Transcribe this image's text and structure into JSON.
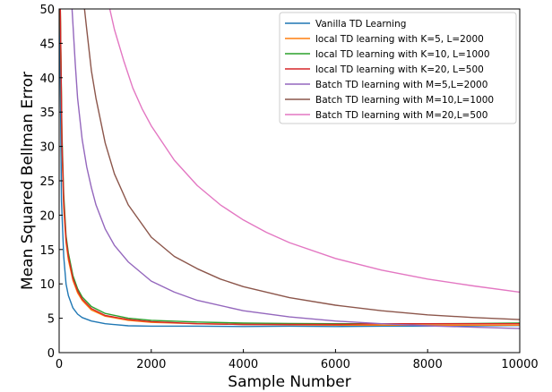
{
  "chart_data": {
    "type": "line",
    "title": "",
    "xlabel": "Sample Number",
    "ylabel": "Mean Squared Bellman Error",
    "xlim": [
      0,
      10000
    ],
    "ylim": [
      0,
      50
    ],
    "xticks": [
      0,
      2000,
      4000,
      6000,
      8000,
      10000
    ],
    "yticks": [
      0,
      5,
      10,
      15,
      20,
      25,
      30,
      35,
      40,
      45,
      50
    ],
    "grid": false,
    "legend_position": "top-right",
    "series": [
      {
        "name": "Vanilla TD Learning",
        "color": "#1f77b4",
        "x": [
          10,
          50,
          100,
          150,
          200,
          300,
          400,
          500,
          700,
          1000,
          1500,
          2000,
          3000,
          4000,
          5000,
          6000,
          7000,
          8000,
          9000,
          10000
        ],
        "y": [
          50,
          22,
          14,
          10,
          8.3,
          6.5,
          5.6,
          5.1,
          4.6,
          4.2,
          3.9,
          3.85,
          3.85,
          3.8,
          3.85,
          3.8,
          3.85,
          3.85,
          3.9,
          3.95
        ]
      },
      {
        "name": "local TD learning with K=5, L=2000",
        "color": "#ff7f0e",
        "x": [
          25,
          60,
          100,
          150,
          200,
          300,
          400,
          500,
          700,
          1000,
          1500,
          2000,
          3000,
          4000,
          5000,
          6000,
          7000,
          8000,
          9000,
          10000
        ],
        "y": [
          50,
          30,
          21,
          16,
          13.5,
          10.5,
          8.7,
          7.6,
          6.2,
          5.3,
          4.7,
          4.4,
          4.2,
          4.1,
          4.05,
          4.0,
          4.0,
          4.0,
          4.0,
          4.0
        ]
      },
      {
        "name": "local TD learning with K=10, L=1000",
        "color": "#2ca02c",
        "x": [
          25,
          60,
          100,
          150,
          200,
          300,
          400,
          500,
          700,
          1000,
          1500,
          2000,
          3000,
          4000,
          5000,
          6000,
          7000,
          8000,
          9000,
          10000
        ],
        "y": [
          50,
          32,
          23,
          17,
          14.5,
          11.2,
          9.3,
          8.1,
          6.7,
          5.7,
          5.0,
          4.7,
          4.45,
          4.3,
          4.25,
          4.2,
          4.2,
          4.2,
          4.25,
          4.3
        ]
      },
      {
        "name": "local TD learning with K=20, L=500",
        "color": "#d62728",
        "x": [
          25,
          60,
          100,
          150,
          200,
          300,
          400,
          500,
          700,
          1000,
          1500,
          2000,
          3000,
          4000,
          5000,
          6000,
          7000,
          8000,
          9000,
          10000
        ],
        "y": [
          50,
          31,
          22,
          16.5,
          14,
          10.8,
          9.0,
          7.8,
          6.4,
          5.4,
          4.8,
          4.5,
          4.2,
          4.1,
          4.1,
          4.1,
          4.2,
          4.2,
          4.2,
          4.2
        ]
      },
      {
        "name": "Batch TD learning with M=5,L=2000",
        "color": "#9467bd",
        "x": [
          280,
          350,
          400,
          500,
          600,
          700,
          800,
          1000,
          1200,
          1500,
          2000,
          2500,
          3000,
          4000,
          5000,
          6000,
          7000,
          8000,
          9000,
          10000
        ],
        "y": [
          50,
          42,
          37,
          31,
          27,
          24,
          21.5,
          18,
          15.6,
          13.2,
          10.4,
          8.8,
          7.6,
          6.1,
          5.2,
          4.6,
          4.2,
          3.9,
          3.7,
          3.5
        ]
      },
      {
        "name": "Batch TD learning with M=10,L=1000",
        "color": "#8c564b",
        "x": [
          550,
          600,
          700,
          800,
          1000,
          1200,
          1500,
          2000,
          2500,
          3000,
          3500,
          4000,
          5000,
          6000,
          7000,
          8000,
          9000,
          10000
        ],
        "y": [
          50,
          47,
          41,
          37,
          30.5,
          26,
          21.5,
          16.8,
          14,
          12.2,
          10.7,
          9.6,
          8.0,
          6.9,
          6.1,
          5.5,
          5.1,
          4.8
        ]
      },
      {
        "name": "Batch TD learning with M=20,L=500",
        "color": "#e377c2",
        "x": [
          1100,
          1200,
          1400,
          1600,
          1800,
          2000,
          2500,
          3000,
          3500,
          4000,
          4500,
          5000,
          6000,
          7000,
          8000,
          9000,
          10000
        ],
        "y": [
          50,
          47,
          42.5,
          38.5,
          35.5,
          33,
          28,
          24.3,
          21.5,
          19.3,
          17.5,
          16,
          13.7,
          12,
          10.7,
          9.7,
          8.8
        ]
      }
    ]
  }
}
